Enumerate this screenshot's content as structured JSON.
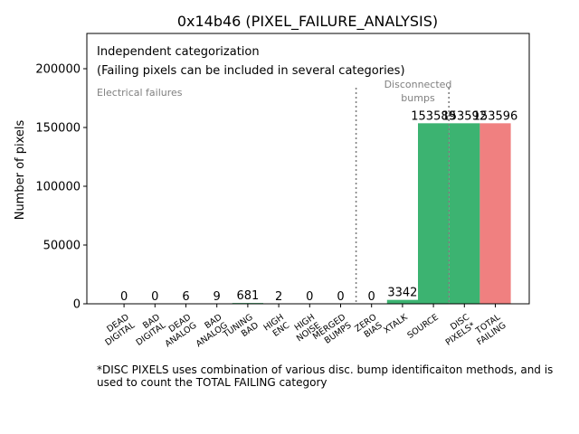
{
  "chart_data": {
    "type": "bar",
    "title": "0x14b46 (PIXEL_FAILURE_ANALYSIS)",
    "ylabel": "Number of pixels",
    "xlabel": "",
    "ylim": [
      0,
      230000
    ],
    "yticks": [
      0,
      50000,
      100000,
      150000,
      200000
    ],
    "annotations": {
      "line1": "Independent categorization",
      "line2": "(Failing pixels can be included in several categories)",
      "electrical": "Electrical failures",
      "disconnected": [
        "Disconnected",
        "bumps"
      ]
    },
    "categories": [
      [
        "DEAD",
        "DIGITAL"
      ],
      [
        "BAD",
        "DIGITAL"
      ],
      [
        "DEAD",
        "ANALOG"
      ],
      [
        "BAD",
        "ANALOG"
      ],
      [
        "TUNING",
        "BAD"
      ],
      [
        "HIGH",
        "ENC"
      ],
      [
        "HIGH",
        "NOISE"
      ],
      [
        "MERGED",
        "BUMPS"
      ],
      [
        "ZERO",
        "BIAS"
      ],
      [
        "XTALK"
      ],
      [
        "SOURCE"
      ],
      [
        "DISC",
        "PIXELS*"
      ],
      [
        "TOTAL",
        "FAILING"
      ]
    ],
    "values": [
      0,
      0,
      6,
      9,
      681,
      2,
      0,
      0,
      0,
      3342,
      153589,
      153592,
      153596
    ],
    "value_labels": [
      "0",
      "0",
      "6",
      "9",
      "681",
      "2",
      "0",
      "0",
      "0",
      "3342",
      "153589",
      "153592",
      "153596"
    ],
    "colors": [
      "#3cb371",
      "#3cb371",
      "#3cb371",
      "#3cb371",
      "#3cb371",
      "#3cb371",
      "#3cb371",
      "#3cb371",
      "#3cb371",
      "#3cb371",
      "#3cb371",
      "#3cb371",
      "#f08080"
    ],
    "separators_after_index": [
      7,
      10
    ]
  },
  "footnote": {
    "line1": "*DISC PIXELS uses combination of various disc. bump identificaiton methods, and is",
    "line2": "used to count the TOTAL FAILING category"
  }
}
